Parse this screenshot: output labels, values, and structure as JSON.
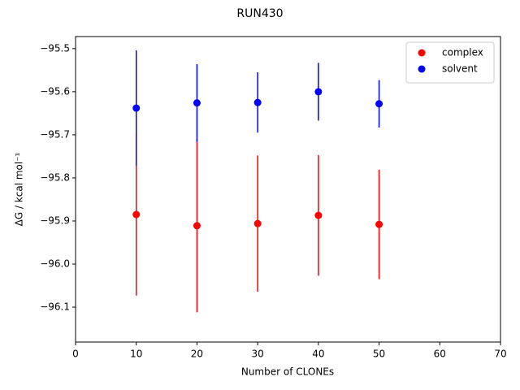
{
  "chart_data": {
    "type": "scatter",
    "title": "RUN430",
    "x_label": "Number of CLONEs",
    "y_label": "ΔG / kcal mol⁻¹",
    "x": [
      10,
      20,
      30,
      40,
      50
    ],
    "series": [
      {
        "name": "complex",
        "color": "#ff0000",
        "values": [
          -95.885,
          -95.911,
          -95.906,
          -95.887,
          -95.908
        ],
        "errors": [
          0.188,
          0.201,
          0.158,
          0.14,
          0.127
        ]
      },
      {
        "name": "solvent",
        "color": "#0000ff",
        "values": [
          -95.638,
          -95.626,
          -95.625,
          -95.6,
          -95.628
        ],
        "errors": [
          0.134,
          0.09,
          0.07,
          0.067,
          0.055
        ]
      }
    ],
    "xlim": [
      0,
      70
    ],
    "xticks": [
      0,
      10,
      20,
      30,
      40,
      50,
      60,
      70
    ],
    "ylim": [
      -96.181,
      -95.472
    ],
    "yticks": [
      {
        "value": -96.1,
        "label": "−96.1"
      },
      {
        "value": -96.0,
        "label": "−96.0"
      },
      {
        "value": -95.9,
        "label": "−95.9"
      },
      {
        "value": -95.8,
        "label": "−95.8"
      },
      {
        "value": -95.7,
        "label": "−95.7"
      },
      {
        "value": -95.6,
        "label": "−95.6"
      },
      {
        "value": -95.5,
        "label": "−95.5"
      }
    ],
    "legend": "upper right",
    "grid": false
  }
}
